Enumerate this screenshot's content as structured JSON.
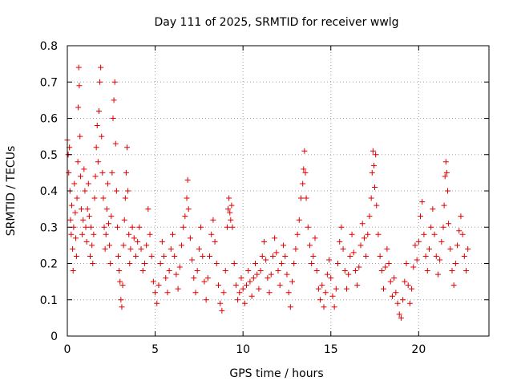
{
  "chart_data": {
    "type": "scatter",
    "title": "Day 111 of 2025, SRMTID for receiver wwlg",
    "xlabel": "GPS time / hours",
    "ylabel": "SRMTID / TECUs",
    "xlim": [
      0,
      24
    ],
    "ylim": [
      0,
      0.8
    ],
    "xticks": [
      0,
      5,
      10,
      15,
      20
    ],
    "xtick_labels": [
      "0",
      "5",
      "10",
      "15",
      "20"
    ],
    "yticks": [
      0,
      0.1,
      0.2,
      0.3,
      0.4,
      0.5,
      0.6,
      0.7,
      0.8
    ],
    "ytick_labels": [
      "0",
      "0.1",
      "0.2",
      "0.3",
      "0.4",
      "0.5",
      "0.6",
      "0.7",
      "0.8"
    ],
    "grid": true,
    "marker": "plus",
    "color": "#e00000",
    "series": [
      {
        "name": "SRMTID",
        "points": [
          [
            0.0,
            0.54
          ],
          [
            0.05,
            0.5
          ],
          [
            0.08,
            0.45
          ],
          [
            0.12,
            0.52
          ],
          [
            0.15,
            0.4
          ],
          [
            0.18,
            0.32
          ],
          [
            0.22,
            0.28
          ],
          [
            0.25,
            0.36
          ],
          [
            0.3,
            0.24
          ],
          [
            0.33,
            0.18
          ],
          [
            0.36,
            0.3
          ],
          [
            0.4,
            0.42
          ],
          [
            0.45,
            0.34
          ],
          [
            0.48,
            0.27
          ],
          [
            0.52,
            0.22
          ],
          [
            0.55,
            0.38
          ],
          [
            0.6,
            0.48
          ],
          [
            0.62,
            0.63
          ],
          [
            0.65,
            0.74
          ],
          [
            0.68,
            0.69
          ],
          [
            0.72,
            0.55
          ],
          [
            0.75,
            0.44
          ],
          [
            0.8,
            0.35
          ],
          [
            0.85,
            0.28
          ],
          [
            0.9,
            0.32
          ],
          [
            0.95,
            0.46
          ],
          [
            1.0,
            0.4
          ],
          [
            1.05,
            0.3
          ],
          [
            1.1,
            0.26
          ],
          [
            1.15,
            0.35
          ],
          [
            1.2,
            0.42
          ],
          [
            1.25,
            0.33
          ],
          [
            1.3,
            0.22
          ],
          [
            1.35,
            0.3
          ],
          [
            1.4,
            0.25
          ],
          [
            1.45,
            0.2
          ],
          [
            1.5,
            0.28
          ],
          [
            1.55,
            0.38
          ],
          [
            1.6,
            0.44
          ],
          [
            1.65,
            0.52
          ],
          [
            1.7,
            0.58
          ],
          [
            1.75,
            0.48
          ],
          [
            1.8,
            0.62
          ],
          [
            1.85,
            0.7
          ],
          [
            1.9,
            0.74
          ],
          [
            1.95,
            0.55
          ],
          [
            2.0,
            0.45
          ],
          [
            2.05,
            0.38
          ],
          [
            2.1,
            0.3
          ],
          [
            2.15,
            0.24
          ],
          [
            2.2,
            0.28
          ],
          [
            2.25,
            0.35
          ],
          [
            2.3,
            0.42
          ],
          [
            2.35,
            0.31
          ],
          [
            2.4,
            0.25
          ],
          [
            2.45,
            0.2
          ],
          [
            2.5,
            0.33
          ],
          [
            2.55,
            0.45
          ],
          [
            2.6,
            0.6
          ],
          [
            2.65,
            0.65
          ],
          [
            2.7,
            0.7
          ],
          [
            2.75,
            0.53
          ],
          [
            2.8,
            0.4
          ],
          [
            2.85,
            0.3
          ],
          [
            2.9,
            0.22
          ],
          [
            2.95,
            0.18
          ],
          [
            3.0,
            0.15
          ],
          [
            3.05,
            0.1
          ],
          [
            3.1,
            0.08
          ],
          [
            3.15,
            0.14
          ],
          [
            3.2,
            0.25
          ],
          [
            3.25,
            0.32
          ],
          [
            3.3,
            0.38
          ],
          [
            3.35,
            0.45
          ],
          [
            3.4,
            0.52
          ],
          [
            3.45,
            0.4
          ],
          [
            3.5,
            0.28
          ],
          [
            3.55,
            0.2
          ],
          [
            3.6,
            0.24
          ],
          [
            3.7,
            0.3
          ],
          [
            3.8,
            0.27
          ],
          [
            3.9,
            0.22
          ],
          [
            4.0,
            0.26
          ],
          [
            4.1,
            0.3
          ],
          [
            4.2,
            0.24
          ],
          [
            4.3,
            0.18
          ],
          [
            4.4,
            0.2
          ],
          [
            4.5,
            0.25
          ],
          [
            4.6,
            0.35
          ],
          [
            4.7,
            0.28
          ],
          [
            4.8,
            0.22
          ],
          [
            4.9,
            0.15
          ],
          [
            5.0,
            0.12
          ],
          [
            5.1,
            0.09
          ],
          [
            5.2,
            0.14
          ],
          [
            5.3,
            0.2
          ],
          [
            5.4,
            0.26
          ],
          [
            5.5,
            0.22
          ],
          [
            5.6,
            0.16
          ],
          [
            5.7,
            0.12
          ],
          [
            5.8,
            0.18
          ],
          [
            5.9,
            0.24
          ],
          [
            6.0,
            0.28
          ],
          [
            6.1,
            0.22
          ],
          [
            6.2,
            0.17
          ],
          [
            6.3,
            0.13
          ],
          [
            6.4,
            0.19
          ],
          [
            6.5,
            0.25
          ],
          [
            6.6,
            0.3
          ],
          [
            6.7,
            0.33
          ],
          [
            6.8,
            0.38
          ],
          [
            6.85,
            0.43
          ],
          [
            6.9,
            0.35
          ],
          [
            7.0,
            0.27
          ],
          [
            7.1,
            0.21
          ],
          [
            7.2,
            0.16
          ],
          [
            7.3,
            0.12
          ],
          [
            7.4,
            0.18
          ],
          [
            7.5,
            0.24
          ],
          [
            7.6,
            0.3
          ],
          [
            7.7,
            0.22
          ],
          [
            7.8,
            0.15
          ],
          [
            7.9,
            0.1
          ],
          [
            8.0,
            0.16
          ],
          [
            8.1,
            0.22
          ],
          [
            8.2,
            0.28
          ],
          [
            8.3,
            0.32
          ],
          [
            8.4,
            0.26
          ],
          [
            8.5,
            0.2
          ],
          [
            8.6,
            0.14
          ],
          [
            8.7,
            0.09
          ],
          [
            8.8,
            0.07
          ],
          [
            8.9,
            0.12
          ],
          [
            9.0,
            0.18
          ],
          [
            9.1,
            0.3
          ],
          [
            9.15,
            0.35
          ],
          [
            9.2,
            0.38
          ],
          [
            9.25,
            0.34
          ],
          [
            9.3,
            0.32
          ],
          [
            9.35,
            0.36
          ],
          [
            9.4,
            0.3
          ],
          [
            9.5,
            0.2
          ],
          [
            9.6,
            0.14
          ],
          [
            9.7,
            0.1
          ],
          [
            9.8,
            0.12
          ],
          [
            9.9,
            0.16
          ],
          [
            10.0,
            0.13
          ],
          [
            10.1,
            0.09
          ],
          [
            10.2,
            0.14
          ],
          [
            10.3,
            0.18
          ],
          [
            10.4,
            0.15
          ],
          [
            10.5,
            0.11
          ],
          [
            10.6,
            0.16
          ],
          [
            10.7,
            0.2
          ],
          [
            10.8,
            0.17
          ],
          [
            10.9,
            0.13
          ],
          [
            11.0,
            0.18
          ],
          [
            11.1,
            0.22
          ],
          [
            11.2,
            0.26
          ],
          [
            11.3,
            0.21
          ],
          [
            11.4,
            0.16
          ],
          [
            11.5,
            0.12
          ],
          [
            11.6,
            0.17
          ],
          [
            11.7,
            0.22
          ],
          [
            11.8,
            0.27
          ],
          [
            11.9,
            0.23
          ],
          [
            12.0,
            0.18
          ],
          [
            12.1,
            0.14
          ],
          [
            12.2,
            0.2
          ],
          [
            12.3,
            0.25
          ],
          [
            12.4,
            0.22
          ],
          [
            12.5,
            0.17
          ],
          [
            12.6,
            0.12
          ],
          [
            12.7,
            0.08
          ],
          [
            12.8,
            0.15
          ],
          [
            12.9,
            0.2
          ],
          [
            13.0,
            0.24
          ],
          [
            13.1,
            0.28
          ],
          [
            13.2,
            0.32
          ],
          [
            13.3,
            0.38
          ],
          [
            13.4,
            0.42
          ],
          [
            13.45,
            0.46
          ],
          [
            13.5,
            0.51
          ],
          [
            13.55,
            0.45
          ],
          [
            13.6,
            0.38
          ],
          [
            13.7,
            0.3
          ],
          [
            13.8,
            0.25
          ],
          [
            13.9,
            0.2
          ],
          [
            14.0,
            0.22
          ],
          [
            14.1,
            0.27
          ],
          [
            14.2,
            0.18
          ],
          [
            14.3,
            0.13
          ],
          [
            14.4,
            0.1
          ],
          [
            14.5,
            0.14
          ],
          [
            14.6,
            0.08
          ],
          [
            14.7,
            0.12
          ],
          [
            14.8,
            0.17
          ],
          [
            14.9,
            0.21
          ],
          [
            15.0,
            0.16
          ],
          [
            15.1,
            0.11
          ],
          [
            15.2,
            0.08
          ],
          [
            15.3,
            0.13
          ],
          [
            15.4,
            0.2
          ],
          [
            15.5,
            0.26
          ],
          [
            15.6,
            0.3
          ],
          [
            15.7,
            0.24
          ],
          [
            15.8,
            0.18
          ],
          [
            15.9,
            0.13
          ],
          [
            16.0,
            0.17
          ],
          [
            16.1,
            0.22
          ],
          [
            16.2,
            0.28
          ],
          [
            16.3,
            0.23
          ],
          [
            16.4,
            0.18
          ],
          [
            16.5,
            0.14
          ],
          [
            16.6,
            0.19
          ],
          [
            16.7,
            0.25
          ],
          [
            16.8,
            0.31
          ],
          [
            16.9,
            0.27
          ],
          [
            17.0,
            0.22
          ],
          [
            17.1,
            0.28
          ],
          [
            17.2,
            0.33
          ],
          [
            17.3,
            0.38
          ],
          [
            17.35,
            0.45
          ],
          [
            17.4,
            0.51
          ],
          [
            17.45,
            0.47
          ],
          [
            17.5,
            0.41
          ],
          [
            17.55,
            0.5
          ],
          [
            17.6,
            0.36
          ],
          [
            17.7,
            0.28
          ],
          [
            17.8,
            0.22
          ],
          [
            17.9,
            0.18
          ],
          [
            18.0,
            0.13
          ],
          [
            18.1,
            0.19
          ],
          [
            18.2,
            0.24
          ],
          [
            18.3,
            0.2
          ],
          [
            18.4,
            0.15
          ],
          [
            18.5,
            0.11
          ],
          [
            18.6,
            0.16
          ],
          [
            18.7,
            0.12
          ],
          [
            18.8,
            0.09
          ],
          [
            18.9,
            0.06
          ],
          [
            19.0,
            0.05
          ],
          [
            19.1,
            0.1
          ],
          [
            19.2,
            0.15
          ],
          [
            19.3,
            0.2
          ],
          [
            19.4,
            0.14
          ],
          [
            19.5,
            0.09
          ],
          [
            19.6,
            0.13
          ],
          [
            19.7,
            0.19
          ],
          [
            19.8,
            0.25
          ],
          [
            19.9,
            0.21
          ],
          [
            20.0,
            0.26
          ],
          [
            20.1,
            0.33
          ],
          [
            20.2,
            0.37
          ],
          [
            20.3,
            0.28
          ],
          [
            20.4,
            0.22
          ],
          [
            20.5,
            0.18
          ],
          [
            20.6,
            0.24
          ],
          [
            20.7,
            0.3
          ],
          [
            20.8,
            0.35
          ],
          [
            20.9,
            0.28
          ],
          [
            21.0,
            0.22
          ],
          [
            21.1,
            0.17
          ],
          [
            21.2,
            0.21
          ],
          [
            21.3,
            0.26
          ],
          [
            21.4,
            0.3
          ],
          [
            21.45,
            0.36
          ],
          [
            21.5,
            0.44
          ],
          [
            21.55,
            0.48
          ],
          [
            21.6,
            0.45
          ],
          [
            21.65,
            0.4
          ],
          [
            21.7,
            0.31
          ],
          [
            21.8,
            0.24
          ],
          [
            21.9,
            0.18
          ],
          [
            22.0,
            0.14
          ],
          [
            22.1,
            0.2
          ],
          [
            22.2,
            0.25
          ],
          [
            22.3,
            0.29
          ],
          [
            22.4,
            0.33
          ],
          [
            22.5,
            0.28
          ],
          [
            22.6,
            0.22
          ],
          [
            22.7,
            0.18
          ],
          [
            22.8,
            0.24
          ]
        ]
      }
    ]
  }
}
